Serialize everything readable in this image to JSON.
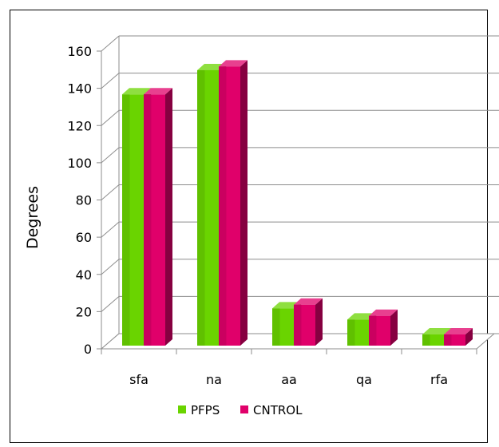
{
  "chart_data": {
    "type": "bar",
    "categories": [
      "sfa",
      "na",
      "aa",
      "qa",
      "rfa"
    ],
    "series": [
      {
        "name": "PFPS",
        "values": [
          135,
          148,
          20,
          14,
          6
        ],
        "color": "#6ad400"
      },
      {
        "name": "CNTROL",
        "values": [
          135,
          150,
          22,
          16,
          6
        ],
        "color": "#e0006a"
      }
    ],
    "ylabel": "Degrees",
    "xlabel": "",
    "ylim": [
      0,
      160
    ],
    "yticks": [
      0,
      20,
      40,
      60,
      80,
      100,
      120,
      140,
      160
    ],
    "grid": true,
    "legend_position": "bottom",
    "style": "3d-clustered-column"
  }
}
